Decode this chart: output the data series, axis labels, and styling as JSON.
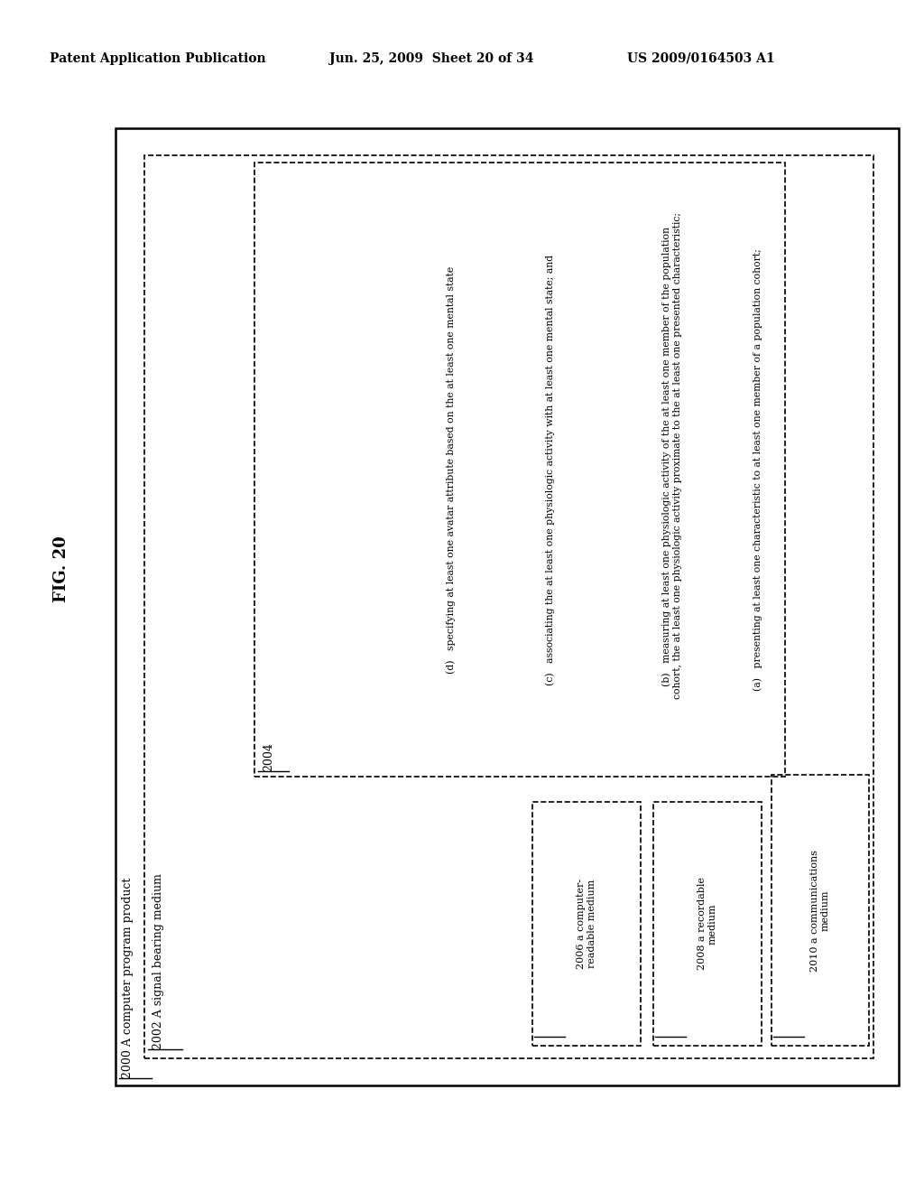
{
  "header_left": "Patent Application Publication",
  "header_mid": "Jun. 25, 2009  Sheet 20 of 34",
  "header_right": "US 2009/0164503 A1",
  "fig_label": "FIG. 20",
  "label_2000": "2000 A computer program product",
  "label_2002": "2002 A signal bearing medium",
  "label_2004": "2004",
  "item_a": "(a)   presenting at least one characteristic to at least one member of a population cohort;",
  "item_b": "(b)   measuring at least one physiologic activity of the at least one member of the population\ncohort, the at least one physiologic activity proximate to the at least one presented characteristic;",
  "item_c": "(c)   associating the at least one physiologic activity with at least one mental state; and",
  "item_d": "(d)   specifying at least one avatar attribute based on the at least one mental state",
  "label_2006": "2006 a computer-\nreadable medium",
  "label_2008": "2008 a recordable\nmedium",
  "label_2010": "2010 a communications\nmedium",
  "bg": "#ffffff",
  "fg": "#000000"
}
